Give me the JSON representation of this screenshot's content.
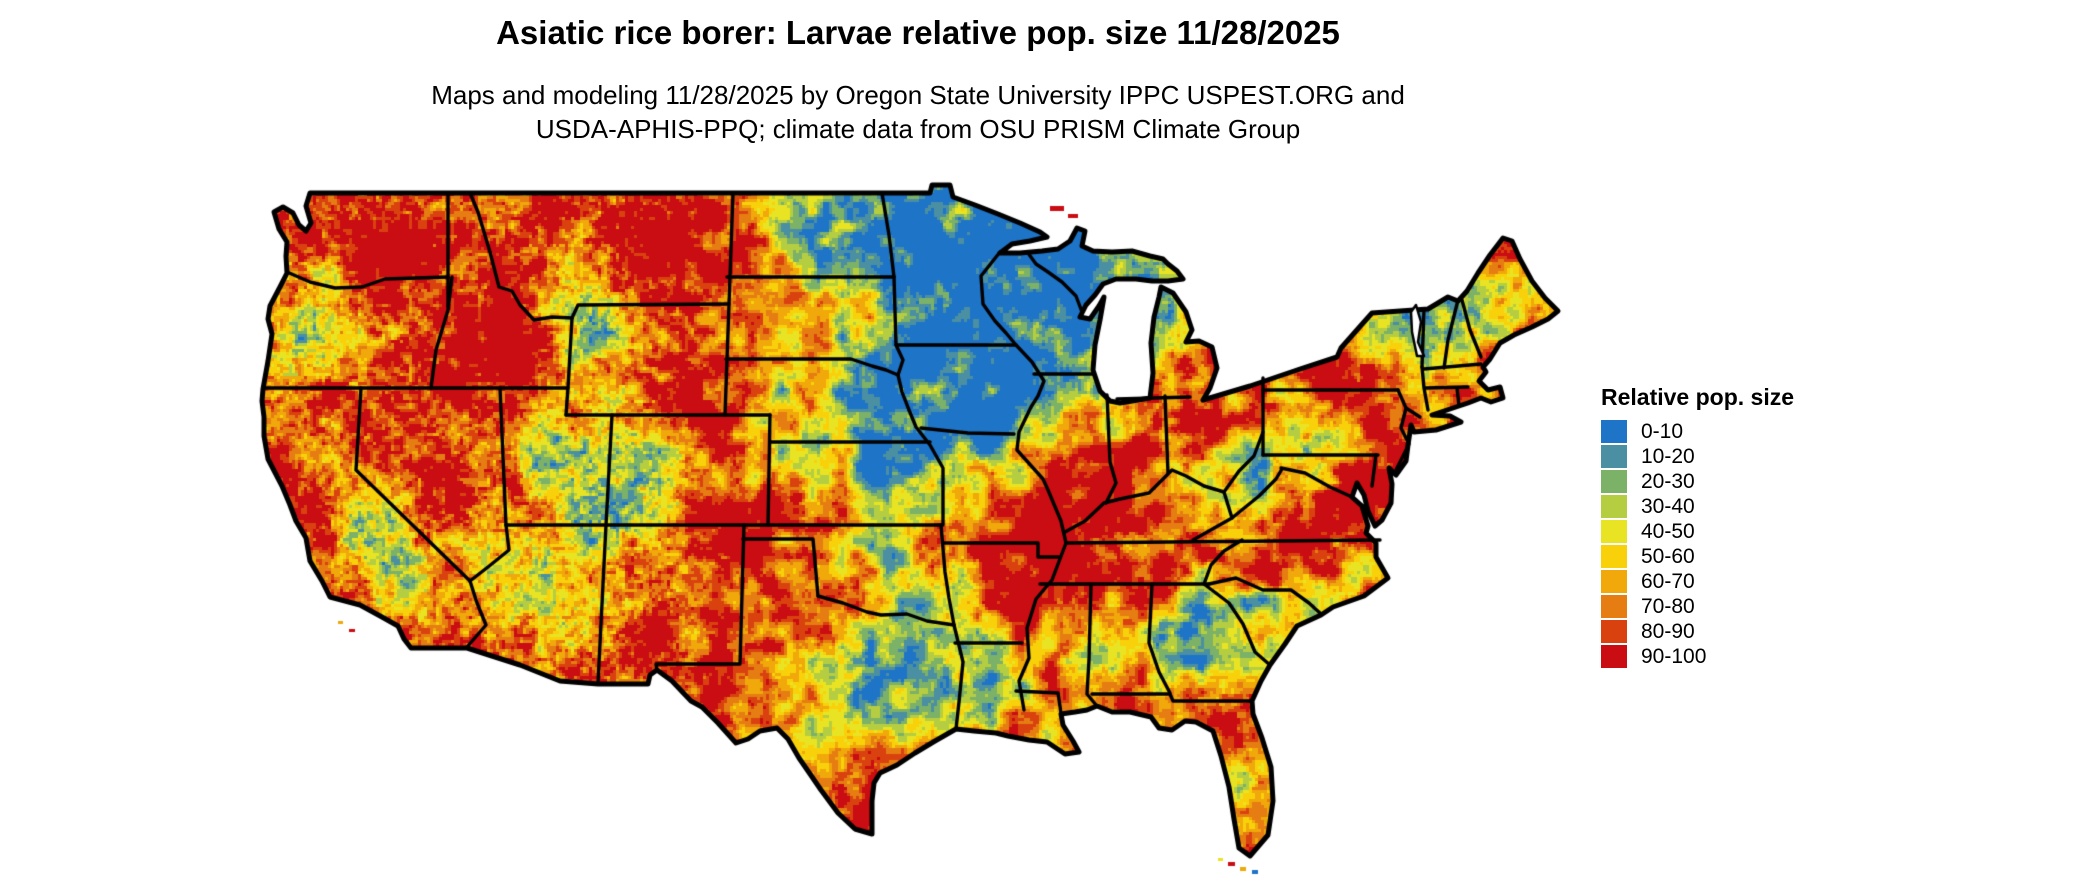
{
  "header": {
    "title": "Asiatic rice borer: Larvae relative pop. size 11/28/2025",
    "subtitle_line1": "Maps and modeling 11/28/2025 by Oregon State University IPPC USPEST.ORG and",
    "subtitle_line2": "USDA-APHIS-PPQ; climate data from OSU PRISM Climate Group"
  },
  "map": {
    "area_label": "Contiguous United States",
    "border_color": "#000000",
    "water_color": "#ffffff",
    "dominant_color": "#c90d12"
  },
  "legend": {
    "title": "Relative pop. size",
    "entries": [
      {
        "label": "0-10",
        "color": "#1e74c6"
      },
      {
        "label": "10-20",
        "color": "#4a8fa2"
      },
      {
        "label": "20-30",
        "color": "#7cb168"
      },
      {
        "label": "30-40",
        "color": "#b5ce41"
      },
      {
        "label": "40-50",
        "color": "#e8e423"
      },
      {
        "label": "50-60",
        "color": "#f8d10a"
      },
      {
        "label": "60-70",
        "color": "#f0a80a"
      },
      {
        "label": "70-80",
        "color": "#e67d12"
      },
      {
        "label": "80-90",
        "color": "#d9420f"
      },
      {
        "label": "90-100",
        "color": "#c90d12"
      }
    ]
  }
}
